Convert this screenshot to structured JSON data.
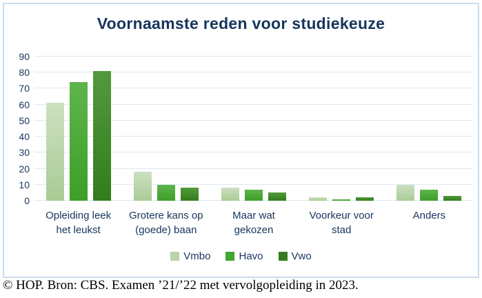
{
  "title": "Voornaamste reden voor studiekeuze",
  "footer": "© HOP. Bron: CBS. Examen ’21/’22 met vervolgopleiding in 2023.",
  "colors": {
    "title_text": "#16355c",
    "axis_text": "#16355c",
    "gridline": "#dde7f2",
    "frame_border": "#c9dcee",
    "background": "#ffffff"
  },
  "chart_data": {
    "type": "bar",
    "title": "Voornaamste reden voor studiekeuze",
    "categories": [
      "Opleiding leek het leukst",
      "Grotere kans op (goede) baan",
      "Maar wat gekozen",
      "Voorkeur voor stad",
      "Anders"
    ],
    "series": [
      {
        "name": "Vmbo",
        "values": [
          61,
          18,
          8,
          2,
          10
        ],
        "color_top": "#cde0c1",
        "color_bottom": "#a9cb95",
        "legend_color": "#b9d3ab"
      },
      {
        "name": "Havo",
        "values": [
          74,
          10,
          7,
          1,
          7
        ],
        "color_top": "#5eb54b",
        "color_bottom": "#3c9f28",
        "legend_color": "#42a52e"
      },
      {
        "name": "Vwo",
        "values": [
          81,
          8,
          5,
          2,
          3
        ],
        "color_top": "#52993b",
        "color_bottom": "#327d1d",
        "legend_color": "#337d20"
      }
    ],
    "xlabel": "",
    "ylabel": "",
    "ylim": [
      0,
      90
    ],
    "ytick_step": 10,
    "grid": true,
    "legend_position": "bottom"
  }
}
